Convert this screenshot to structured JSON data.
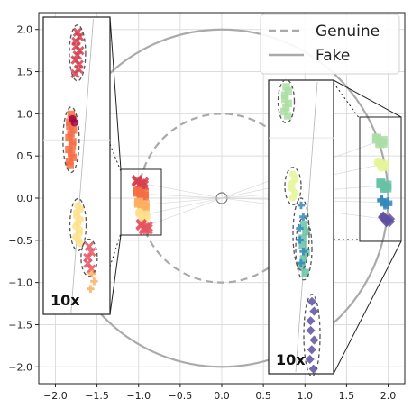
{
  "chart_data": {
    "type": "scatter",
    "title": "",
    "xlabel": "",
    "ylabel": "",
    "xlim": [
      -2.2,
      2.2
    ],
    "ylim": [
      -2.2,
      2.2
    ],
    "grid": true,
    "x_ticks": [
      "−2.0",
      "−1.5",
      "−1.0",
      "−0.5",
      "0.0",
      "0.5",
      "1.0",
      "1.5",
      "2.0"
    ],
    "y_ticks": [
      "2.0",
      "1.5",
      "1.0",
      "0.5",
      "0.0",
      "−0.5",
      "−1.0",
      "−1.5",
      "−2.0"
    ],
    "reference_circles": [
      {
        "name": "Genuine",
        "radius": 1.0,
        "style": "dashed"
      },
      {
        "name": "Fake",
        "radius": 2.0,
        "style": "solid"
      }
    ],
    "legend": {
      "placement": "top-right",
      "entries": [
        "Genuine",
        "Fake"
      ]
    },
    "clusters": [
      {
        "x": -0.98,
        "y": 0.18,
        "color": "#d53e4f",
        "marker": "x"
      },
      {
        "x": -0.97,
        "y": 0.05,
        "color": "#f46d43",
        "marker": "s"
      },
      {
        "x": -0.96,
        "y": -0.08,
        "color": "#fdae61",
        "marker": "s"
      },
      {
        "x": -0.95,
        "y": -0.2,
        "color": "#fee08b",
        "marker": "o"
      },
      {
        "x": -0.93,
        "y": -0.34,
        "color": "#e65561",
        "marker": "x"
      },
      {
        "x": 1.9,
        "y": 0.68,
        "color": "#abdda4",
        "marker": "s"
      },
      {
        "x": 1.92,
        "y": 0.4,
        "color": "#e6f598",
        "marker": "o"
      },
      {
        "x": 1.95,
        "y": 0.15,
        "color": "#66c2a5",
        "marker": "s"
      },
      {
        "x": 1.96,
        "y": -0.05,
        "color": "#3288bd",
        "marker": "+"
      },
      {
        "x": 1.98,
        "y": -0.25,
        "color": "#5e4fa2",
        "marker": "D"
      }
    ],
    "insets": [
      {
        "label": "10x",
        "groups": [
          {
            "x": 0.003,
            "y": 1.62,
            "color": "#d53e4f",
            "marker": "x",
            "count": 10,
            "spread": 0.22
          },
          {
            "x": -0.02,
            "y": 0.7,
            "color": "#f46d43",
            "marker": "s",
            "count": 14,
            "spread": 0.27
          },
          {
            "x": -0.015,
            "y": 0.9,
            "color": "#9e0142",
            "marker": "o",
            "count": 2,
            "spread": 0.02
          },
          {
            "x": 0.005,
            "y": -0.2,
            "color": "#fee08b",
            "marker": "o",
            "count": 12,
            "spread": 0.2
          },
          {
            "x": 0.045,
            "y": -0.55,
            "color": "#e65561",
            "marker": "x",
            "count": 5,
            "spread": 0.12
          },
          {
            "x": 0.055,
            "y": -0.8,
            "color": "#fdae61",
            "marker": "+",
            "count": 3,
            "spread": 0.08
          }
        ]
      },
      {
        "label": "10x",
        "groups": [
          {
            "x": -0.055,
            "y": 1.08,
            "color": "#abdda4",
            "marker": "s",
            "count": 8,
            "spread": 0.15
          },
          {
            "x": -0.03,
            "y": 0.2,
            "color": "#e6f598",
            "marker": "o",
            "count": 6,
            "spread": 0.12
          },
          {
            "x": 0.01,
            "y": -0.45,
            "color": "#66c2a5",
            "marker": "s",
            "count": 8,
            "spread": 0.25
          },
          {
            "x": 0.0,
            "y": -0.3,
            "color": "#3288bd",
            "marker": "+",
            "count": 6,
            "spread": 0.3
          },
          {
            "x": 0.04,
            "y": -1.35,
            "color": "#5e4fa2",
            "marker": "D",
            "count": 8,
            "spread": 0.35
          }
        ]
      }
    ]
  }
}
